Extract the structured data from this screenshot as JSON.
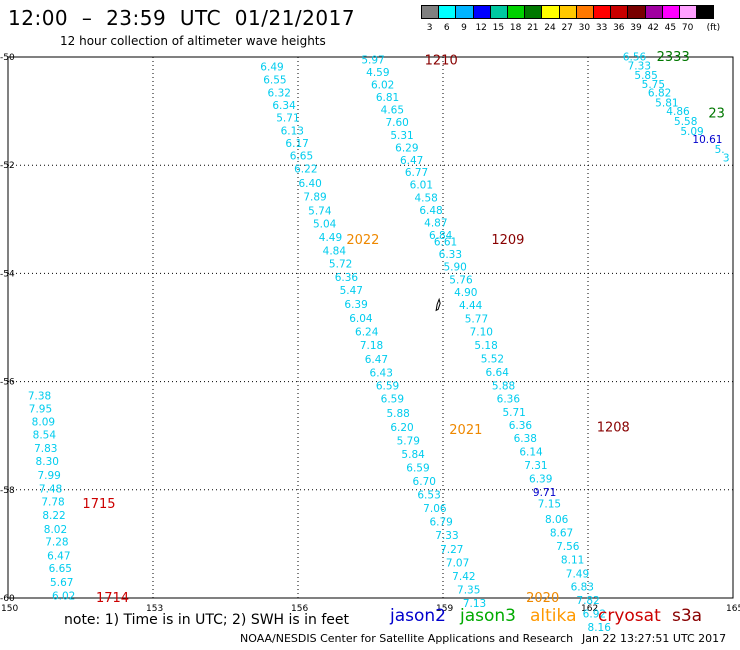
{
  "header": {
    "title": "12:00  –  23:59  UTC  01/21/2017",
    "subtitle": "12 hour collection of altimeter wave heights"
  },
  "legend": {
    "unit": "(ft)",
    "items": [
      {
        "label": "3",
        "color": "#808080"
      },
      {
        "label": "6",
        "color": "#00ffff"
      },
      {
        "label": "9",
        "color": "#00b4ff"
      },
      {
        "label": "12",
        "color": "#0000ff"
      },
      {
        "label": "15",
        "color": "#00c8a0"
      },
      {
        "label": "18",
        "color": "#00d200"
      },
      {
        "label": "21",
        "color": "#007800"
      },
      {
        "label": "24",
        "color": "#ffff00"
      },
      {
        "label": "27",
        "color": "#ffc800"
      },
      {
        "label": "30",
        "color": "#ff7800"
      },
      {
        "label": "33",
        "color": "#ff0000"
      },
      {
        "label": "36",
        "color": "#c80000"
      },
      {
        "label": "39",
        "color": "#780000"
      },
      {
        "label": "42",
        "color": "#a000a0"
      },
      {
        "label": "45",
        "color": "#ff00ff"
      },
      {
        "label": "70",
        "color": "#ffa0ff"
      },
      {
        "label": "",
        "color": "#000000"
      }
    ]
  },
  "map": {
    "lat_range": [
      -60,
      -50
    ],
    "lon_range": [
      150,
      165
    ],
    "lat_ticks": [
      "-50",
      "-52",
      "-54",
      "-56",
      "-58",
      "-60"
    ],
    "lon_ticks": [
      "150",
      "153",
      "156",
      "159",
      "162",
      "165"
    ],
    "colors": {
      "cyan": "#00ccee",
      "blue": "#0000cc",
      "red": "#cc0000",
      "darkred": "#880000",
      "orange": "#ee8800",
      "green": "#007700"
    },
    "labels": [
      {
        "text": "6.49",
        "lon": 155.22,
        "lat": -50.18,
        "c": "cyan"
      },
      {
        "text": "6.55",
        "lon": 155.28,
        "lat": -50.42,
        "c": "cyan"
      },
      {
        "text": "6.32",
        "lon": 155.37,
        "lat": -50.66,
        "c": "cyan"
      },
      {
        "text": "6.34",
        "lon": 155.47,
        "lat": -50.89,
        "c": "cyan"
      },
      {
        "text": "5.71",
        "lon": 155.55,
        "lat": -51.12,
        "c": "cyan"
      },
      {
        "text": "6.13",
        "lon": 155.64,
        "lat": -51.36,
        "c": "cyan"
      },
      {
        "text": "6.17",
        "lon": 155.74,
        "lat": -51.59,
        "c": "cyan"
      },
      {
        "text": "6.65",
        "lon": 155.83,
        "lat": -51.82,
        "c": "cyan"
      },
      {
        "text": "6.22",
        "lon": 155.92,
        "lat": -52.06,
        "c": "cyan"
      },
      {
        "text": "6.40",
        "lon": 156.01,
        "lat": -52.33,
        "c": "cyan"
      },
      {
        "text": "7.89",
        "lon": 156.11,
        "lat": -52.58,
        "c": "cyan"
      },
      {
        "text": "5.74",
        "lon": 156.21,
        "lat": -52.84,
        "c": "cyan"
      },
      {
        "text": "5.04",
        "lon": 156.31,
        "lat": -53.08,
        "c": "cyan"
      },
      {
        "text": "4.49",
        "lon": 156.43,
        "lat": -53.33,
        "c": "cyan"
      },
      {
        "text": "4.84",
        "lon": 156.51,
        "lat": -53.58,
        "c": "cyan"
      },
      {
        "text": "5.72",
        "lon": 156.64,
        "lat": -53.82,
        "c": "cyan"
      },
      {
        "text": "6.36",
        "lon": 156.76,
        "lat": -54.07,
        "c": "cyan"
      },
      {
        "text": "5.47",
        "lon": 156.86,
        "lat": -54.31,
        "c": "cyan"
      },
      {
        "text": "6.39",
        "lon": 156.96,
        "lat": -54.57,
        "c": "cyan"
      },
      {
        "text": "6.04",
        "lon": 157.06,
        "lat": -54.82,
        "c": "cyan"
      },
      {
        "text": "6.24",
        "lon": 157.18,
        "lat": -55.07,
        "c": "cyan"
      },
      {
        "text": "7.18",
        "lon": 157.28,
        "lat": -55.32,
        "c": "cyan"
      },
      {
        "text": "6.47",
        "lon": 157.38,
        "lat": -55.58,
        "c": "cyan"
      },
      {
        "text": "6.43",
        "lon": 157.48,
        "lat": -55.83,
        "c": "cyan"
      },
      {
        "text": "6.59",
        "lon": 157.61,
        "lat": -56.07,
        "c": "cyan"
      },
      {
        "text": "6.59",
        "lon": 157.71,
        "lat": -56.31,
        "c": "cyan"
      },
      {
        "text": "5.88",
        "lon": 157.83,
        "lat": -56.58,
        "c": "cyan"
      },
      {
        "text": "6.20",
        "lon": 157.91,
        "lat": -56.84,
        "c": "cyan"
      },
      {
        "text": "5.79",
        "lon": 158.04,
        "lat": -57.09,
        "c": "cyan"
      },
      {
        "text": "5.84",
        "lon": 158.14,
        "lat": -57.34,
        "c": "cyan"
      },
      {
        "text": "6.59",
        "lon": 158.24,
        "lat": -57.59,
        "c": "cyan"
      },
      {
        "text": "6.70",
        "lon": 158.37,
        "lat": -57.84,
        "c": "cyan"
      },
      {
        "text": "6.53",
        "lon": 158.47,
        "lat": -58.09,
        "c": "cyan"
      },
      {
        "text": "7.06",
        "lon": 158.59,
        "lat": -58.34,
        "c": "cyan"
      },
      {
        "text": "6.79",
        "lon": 158.72,
        "lat": -58.59,
        "c": "cyan"
      },
      {
        "text": "7.33",
        "lon": 158.84,
        "lat": -58.84,
        "c": "cyan"
      },
      {
        "text": "7.27",
        "lon": 158.94,
        "lat": -59.09,
        "c": "cyan"
      },
      {
        "text": "7.07",
        "lon": 159.06,
        "lat": -59.34,
        "c": "cyan"
      },
      {
        "text": "7.42",
        "lon": 159.19,
        "lat": -59.59,
        "c": "cyan"
      },
      {
        "text": "7.35",
        "lon": 159.29,
        "lat": -59.84,
        "c": "cyan"
      },
      {
        "text": "7.13",
        "lon": 159.41,
        "lat": -60.09,
        "c": "cyan"
      },
      {
        "text": "5.97",
        "lon": 157.31,
        "lat": -50.05,
        "c": "cyan"
      },
      {
        "text": "4.59",
        "lon": 157.41,
        "lat": -50.28,
        "c": "cyan"
      },
      {
        "text": "6.02",
        "lon": 157.51,
        "lat": -50.51,
        "c": "cyan"
      },
      {
        "text": "6.81",
        "lon": 157.61,
        "lat": -50.74,
        "c": "cyan"
      },
      {
        "text": "4.65",
        "lon": 157.71,
        "lat": -50.97,
        "c": "cyan"
      },
      {
        "text": "7.60",
        "lon": 157.81,
        "lat": -51.2,
        "c": "cyan"
      },
      {
        "text": "5.31",
        "lon": 157.91,
        "lat": -51.44,
        "c": "cyan"
      },
      {
        "text": "6.29",
        "lon": 158.01,
        "lat": -51.67,
        "c": "cyan"
      },
      {
        "text": "6.47",
        "lon": 158.11,
        "lat": -51.9,
        "c": "cyan"
      },
      {
        "text": "6.77",
        "lon": 158.21,
        "lat": -52.13,
        "c": "cyan"
      },
      {
        "text": "6.01",
        "lon": 158.31,
        "lat": -52.36,
        "c": "cyan"
      },
      {
        "text": "4.58",
        "lon": 158.41,
        "lat": -52.6,
        "c": "cyan"
      },
      {
        "text": "6.48",
        "lon": 158.51,
        "lat": -52.83,
        "c": "cyan"
      },
      {
        "text": "4.87",
        "lon": 158.61,
        "lat": -53.06,
        "c": "cyan"
      },
      {
        "text": "6.84",
        "lon": 158.71,
        "lat": -53.29,
        "c": "cyan"
      },
      {
        "text": "6.61",
        "lon": 158.81,
        "lat": -53.41,
        "c": "cyan"
      },
      {
        "text": "6.33",
        "lon": 158.91,
        "lat": -53.64,
        "c": "cyan"
      },
      {
        "text": "5.90",
        "lon": 159.01,
        "lat": -53.87,
        "c": "cyan"
      },
      {
        "text": "5.76",
        "lon": 159.13,
        "lat": -54.11,
        "c": "cyan"
      },
      {
        "text": "4.90",
        "lon": 159.23,
        "lat": -54.34,
        "c": "cyan"
      },
      {
        "text": "4.44",
        "lon": 159.33,
        "lat": -54.58,
        "c": "cyan"
      },
      {
        "text": "5.77",
        "lon": 159.45,
        "lat": -54.83,
        "c": "cyan"
      },
      {
        "text": "7.10",
        "lon": 159.55,
        "lat": -55.07,
        "c": "cyan"
      },
      {
        "text": "5.18",
        "lon": 159.65,
        "lat": -55.32,
        "c": "cyan"
      },
      {
        "text": "5.52",
        "lon": 159.78,
        "lat": -55.57,
        "c": "cyan"
      },
      {
        "text": "6.64",
        "lon": 159.88,
        "lat": -55.82,
        "c": "cyan"
      },
      {
        "text": "5.88",
        "lon": 160.01,
        "lat": -56.07,
        "c": "cyan"
      },
      {
        "text": "6.36",
        "lon": 160.11,
        "lat": -56.31,
        "c": "cyan"
      },
      {
        "text": "5.71",
        "lon": 160.23,
        "lat": -56.56,
        "c": "cyan"
      },
      {
        "text": "6.36",
        "lon": 160.36,
        "lat": -56.8,
        "c": "cyan"
      },
      {
        "text": "6.38",
        "lon": 160.46,
        "lat": -57.04,
        "c": "cyan"
      },
      {
        "text": "6.14",
        "lon": 160.58,
        "lat": -57.29,
        "c": "cyan"
      },
      {
        "text": "7.31",
        "lon": 160.68,
        "lat": -57.54,
        "c": "cyan"
      },
      {
        "text": "6.39",
        "lon": 160.78,
        "lat": -57.79,
        "c": "cyan"
      },
      {
        "text": "9.71",
        "lon": 160.86,
        "lat": -58.04,
        "c": "blue"
      },
      {
        "text": "7.15",
        "lon": 160.96,
        "lat": -58.25,
        "c": "cyan"
      },
      {
        "text": "8.06",
        "lon": 161.11,
        "lat": -58.54,
        "c": "cyan"
      },
      {
        "text": "8.67",
        "lon": 161.21,
        "lat": -58.79,
        "c": "cyan"
      },
      {
        "text": "7.56",
        "lon": 161.34,
        "lat": -59.04,
        "c": "cyan"
      },
      {
        "text": "8.11",
        "lon": 161.44,
        "lat": -59.29,
        "c": "cyan"
      },
      {
        "text": "7.49",
        "lon": 161.54,
        "lat": -59.55,
        "c": "cyan"
      },
      {
        "text": "6.83",
        "lon": 161.64,
        "lat": -59.79,
        "c": "cyan"
      },
      {
        "text": "7.82",
        "lon": 161.76,
        "lat": -60.04,
        "c": "cyan"
      },
      {
        "text": "6.92",
        "lon": 161.89,
        "lat": -60.29,
        "c": "cyan"
      },
      {
        "text": "8.16",
        "lon": 161.99,
        "lat": -60.54,
        "c": "cyan"
      },
      {
        "text": "7.38",
        "lon": 150.41,
        "lat": -56.26,
        "c": "cyan"
      },
      {
        "text": "7.95",
        "lon": 150.43,
        "lat": -56.5,
        "c": "cyan"
      },
      {
        "text": "8.09",
        "lon": 150.49,
        "lat": -56.74,
        "c": "cyan"
      },
      {
        "text": "8.54",
        "lon": 150.51,
        "lat": -56.98,
        "c": "cyan"
      },
      {
        "text": "7.83",
        "lon": 150.54,
        "lat": -57.23,
        "c": "cyan"
      },
      {
        "text": "8.30",
        "lon": 150.57,
        "lat": -57.47,
        "c": "cyan"
      },
      {
        "text": "7.99",
        "lon": 150.61,
        "lat": -57.73,
        "c": "cyan"
      },
      {
        "text": "7.48",
        "lon": 150.64,
        "lat": -57.98,
        "c": "cyan"
      },
      {
        "text": "7.78",
        "lon": 150.69,
        "lat": -58.22,
        "c": "cyan"
      },
      {
        "text": "8.22",
        "lon": 150.71,
        "lat": -58.47,
        "c": "cyan"
      },
      {
        "text": "8.02",
        "lon": 150.74,
        "lat": -58.72,
        "c": "cyan"
      },
      {
        "text": "7.28",
        "lon": 150.77,
        "lat": -58.96,
        "c": "cyan"
      },
      {
        "text": "6.47",
        "lon": 150.81,
        "lat": -59.21,
        "c": "cyan"
      },
      {
        "text": "6.65",
        "lon": 150.84,
        "lat": -59.45,
        "c": "cyan"
      },
      {
        "text": "5.67",
        "lon": 150.87,
        "lat": -59.7,
        "c": "cyan"
      },
      {
        "text": "6.02",
        "lon": 150.91,
        "lat": -59.95,
        "c": "cyan"
      },
      {
        "text": "6.56",
        "lon": 162.72,
        "lat": -49.99,
        "c": "cyan"
      },
      {
        "text": "7.33",
        "lon": 162.82,
        "lat": -50.16,
        "c": "cyan"
      },
      {
        "text": "5.85",
        "lon": 162.96,
        "lat": -50.33,
        "c": "cyan"
      },
      {
        "text": "5.75",
        "lon": 163.11,
        "lat": -50.5,
        "c": "cyan"
      },
      {
        "text": "6.82",
        "lon": 163.24,
        "lat": -50.66,
        "c": "cyan"
      },
      {
        "text": "5.81",
        "lon": 163.39,
        "lat": -50.84,
        "c": "cyan"
      },
      {
        "text": "4.86",
        "lon": 163.62,
        "lat": -51.0,
        "c": "cyan"
      },
      {
        "text": "5.58",
        "lon": 163.78,
        "lat": -51.18,
        "c": "cyan"
      },
      {
        "text": "5.09",
        "lon": 163.91,
        "lat": -51.37,
        "c": "cyan"
      },
      {
        "text": "10.61",
        "lon": 164.16,
        "lat": -51.52,
        "c": "blue"
      },
      {
        "text": "5.",
        "lon": 164.62,
        "lat": -51.7,
        "c": "cyan"
      },
      {
        "text": "3",
        "lon": 164.79,
        "lat": -51.86,
        "c": "cyan"
      }
    ],
    "time_labels": [
      {
        "text": "1210",
        "lon": 158.62,
        "lat": -50.05,
        "c": "darkred"
      },
      {
        "text": "2333",
        "lon": 163.42,
        "lat": -49.98,
        "c": "green"
      },
      {
        "text": "23",
        "lon": 164.49,
        "lat": -51.03,
        "c": "green"
      },
      {
        "text": "2022",
        "lon": 157.0,
        "lat": -53.36,
        "c": "orange"
      },
      {
        "text": "1209",
        "lon": 160.0,
        "lat": -53.36,
        "c": "darkred"
      },
      {
        "text": "2021",
        "lon": 159.13,
        "lat": -56.88,
        "c": "orange"
      },
      {
        "text": "1208",
        "lon": 162.18,
        "lat": -56.83,
        "c": "darkred"
      },
      {
        "text": "1715",
        "lon": 151.54,
        "lat": -58.24,
        "c": "red"
      },
      {
        "text": "1714",
        "lon": 151.82,
        "lat": -59.98,
        "c": "red"
      },
      {
        "text": "2020",
        "lon": 160.72,
        "lat": -59.98,
        "c": "orange"
      }
    ]
  },
  "footer": {
    "note": "note:  1) Time is in UTC;  2) SWH is in feet",
    "satellites": [
      {
        "name": "jason2",
        "color": "#0000cc"
      },
      {
        "name": "jason3",
        "color": "#00aa00"
      },
      {
        "name": "altika",
        "color": "#ff9900"
      },
      {
        "name": "cryosat",
        "color": "#cc0000"
      },
      {
        "name": "s3a",
        "color": "#880000"
      }
    ],
    "credit": "NOAA/NESDIS Center for Satellite Applications and Research",
    "timestamp": "Jan 22 13:27:51 UTC 2017"
  }
}
